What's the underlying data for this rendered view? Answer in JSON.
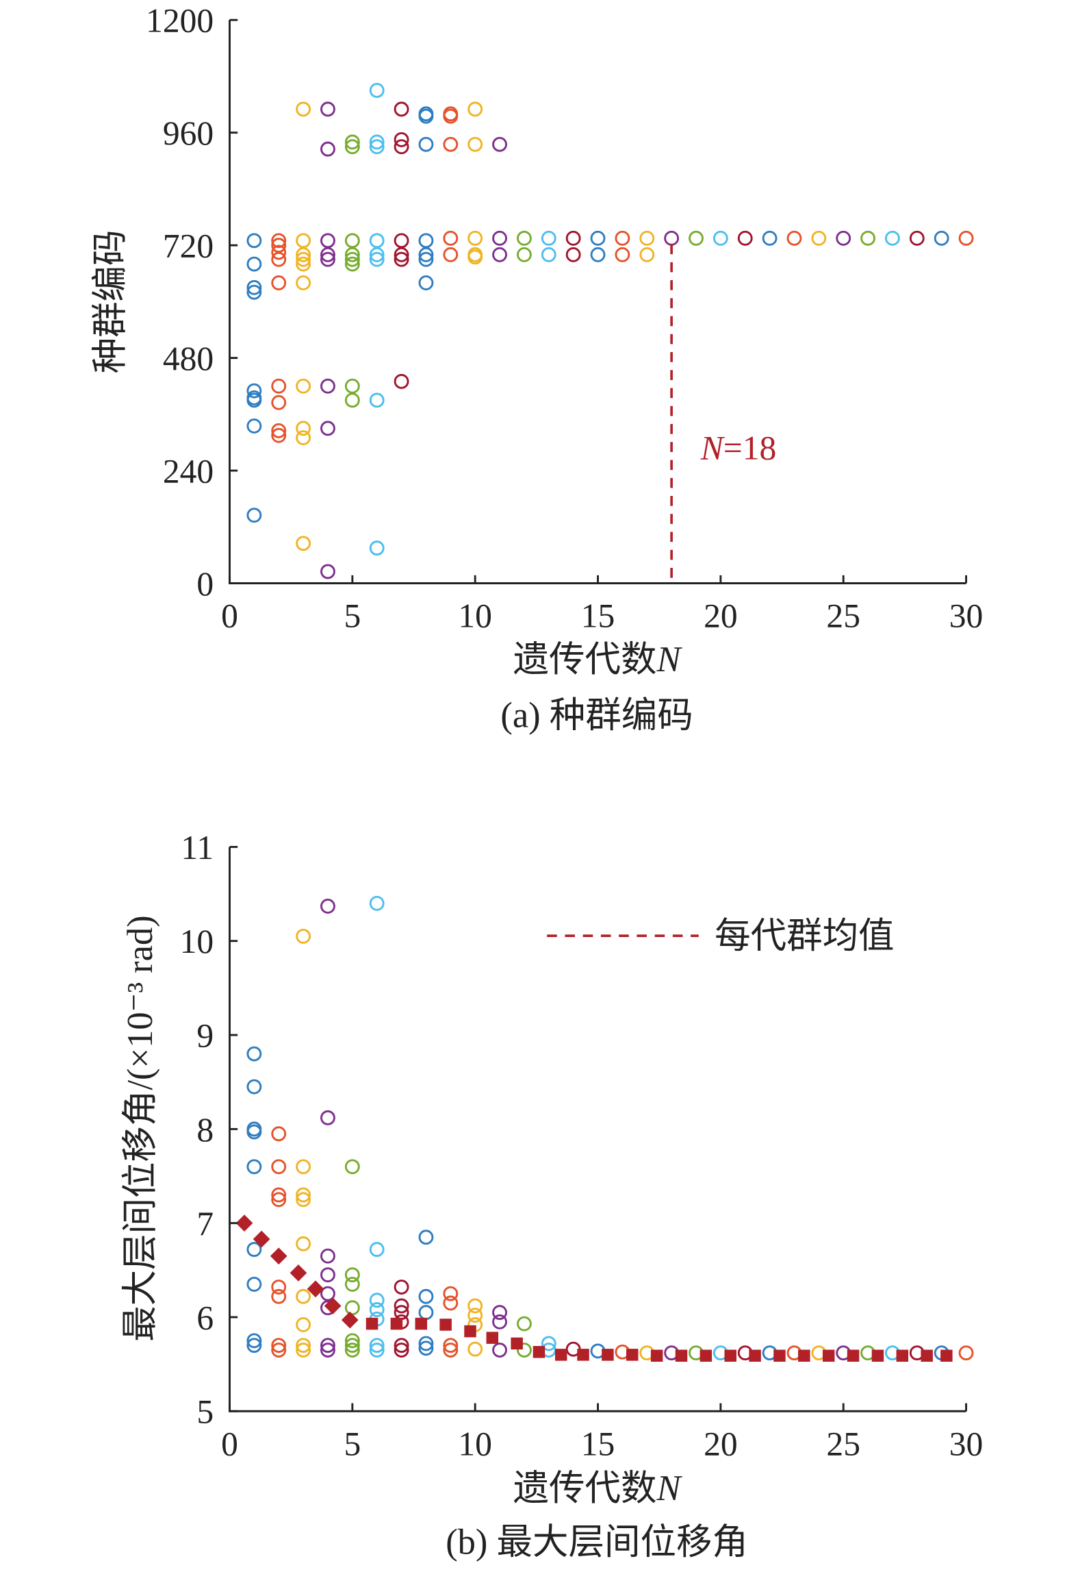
{
  "palette": [
    "#2f7dc1",
    "#e5532b",
    "#f0b425",
    "#7e2f8e",
    "#77ac30",
    "#4dbeee",
    "#a2142f"
  ],
  "mean_color": "#b22028",
  "chart_data": [
    {
      "type": "scatter",
      "caption": "(a) 种群编码",
      "xlabel": "遗传代数",
      "xlabel_var": "N",
      "ylabel": "种群编码",
      "xlim": [
        0,
        30
      ],
      "ylim": [
        0,
        1200
      ],
      "xticks": [
        0,
        5,
        10,
        15,
        20,
        25,
        30
      ],
      "yticks": [
        0,
        240,
        480,
        720,
        960,
        1200
      ],
      "grid": false,
      "annotation": {
        "var": "N",
        "text": "=18",
        "x": 18
      },
      "generations": [
        {
          "x": 1,
          "y": [
            730,
            680,
            630,
            620,
            410,
            395,
            390,
            335,
            145
          ]
        },
        {
          "x": 2,
          "y": [
            730,
            720,
            705,
            690,
            640,
            420,
            385,
            325,
            315
          ]
        },
        {
          "x": 3,
          "y": [
            1010,
            730,
            700,
            690,
            680,
            640,
            420,
            330,
            310,
            85
          ]
        },
        {
          "x": 4,
          "y": [
            1010,
            925,
            730,
            700,
            690,
            420,
            330,
            25
          ]
        },
        {
          "x": 5,
          "y": [
            940,
            930,
            730,
            700,
            690,
            680,
            420,
            390
          ]
        },
        {
          "x": 6,
          "y": [
            1050,
            940,
            930,
            730,
            700,
            690,
            390,
            75
          ]
        },
        {
          "x": 7,
          "y": [
            1010,
            945,
            930,
            730,
            700,
            690,
            430
          ]
        },
        {
          "x": 8,
          "y": [
            1000,
            995,
            935,
            730,
            700,
            690,
            640
          ]
        },
        {
          "x": 9,
          "y": [
            1000,
            995,
            935,
            735,
            700
          ]
        },
        {
          "x": 10,
          "y": [
            1010,
            935,
            735,
            700,
            695
          ]
        },
        {
          "x": 11,
          "y": [
            935,
            735,
            700
          ]
        },
        {
          "x": 12,
          "y": [
            735,
            700
          ]
        },
        {
          "x": 13,
          "y": [
            735,
            700
          ]
        },
        {
          "x": 14,
          "y": [
            735,
            700
          ]
        },
        {
          "x": 15,
          "y": [
            735,
            700
          ]
        },
        {
          "x": 16,
          "y": [
            735,
            700
          ]
        },
        {
          "x": 17,
          "y": [
            735,
            700
          ]
        },
        {
          "x": 18,
          "y": [
            735
          ]
        },
        {
          "x": 19,
          "y": [
            735
          ]
        },
        {
          "x": 20,
          "y": [
            735
          ]
        },
        {
          "x": 21,
          "y": [
            735
          ]
        },
        {
          "x": 22,
          "y": [
            735
          ]
        },
        {
          "x": 23,
          "y": [
            735
          ]
        },
        {
          "x": 24,
          "y": [
            735
          ]
        },
        {
          "x": 25,
          "y": [
            735
          ]
        },
        {
          "x": 26,
          "y": [
            735
          ]
        },
        {
          "x": 27,
          "y": [
            735
          ]
        },
        {
          "x": 28,
          "y": [
            735
          ]
        },
        {
          "x": 29,
          "y": [
            735
          ]
        },
        {
          "x": 30,
          "y": [
            735
          ]
        }
      ]
    },
    {
      "type": "scatter",
      "caption": "(b) 最大层间位移角",
      "xlabel": "遗传代数",
      "xlabel_var": "N",
      "ylabel": "最大层间位移角/(×10⁻³ rad)",
      "xlim": [
        0,
        30
      ],
      "ylim": [
        5,
        11
      ],
      "xticks": [
        0,
        5,
        10,
        15,
        20,
        25,
        30
      ],
      "yticks": [
        5,
        6,
        7,
        8,
        9,
        10,
        11
      ],
      "grid": false,
      "legend": {
        "label": "每代群均值",
        "position": "top-right"
      },
      "generations": [
        {
          "x": 1,
          "y": [
            8.8,
            8.45,
            8.0,
            7.97,
            7.6,
            6.72,
            6.35,
            5.75,
            5.7
          ]
        },
        {
          "x": 2,
          "y": [
            7.95,
            7.6,
            7.3,
            7.25,
            6.32,
            6.22,
            5.7,
            5.65
          ]
        },
        {
          "x": 3,
          "y": [
            10.05,
            7.6,
            7.3,
            7.25,
            6.78,
            6.22,
            5.92,
            5.7,
            5.65
          ]
        },
        {
          "x": 4,
          "y": [
            10.37,
            8.12,
            6.65,
            6.45,
            6.25,
            6.1,
            5.7,
            5.65
          ]
        },
        {
          "x": 5,
          "y": [
            7.6,
            6.45,
            6.35,
            6.1,
            5.75,
            5.7,
            5.65
          ]
        },
        {
          "x": 6,
          "y": [
            10.4,
            6.72,
            6.18,
            6.08,
            5.98,
            5.7,
            5.65
          ]
        },
        {
          "x": 7,
          "y": [
            6.32,
            6.12,
            6.05,
            5.95,
            5.7,
            5.65
          ]
        },
        {
          "x": 8,
          "y": [
            6.85,
            6.22,
            6.05,
            5.72,
            5.67
          ]
        },
        {
          "x": 9,
          "y": [
            6.25,
            6.15,
            5.7,
            5.65
          ]
        },
        {
          "x": 10,
          "y": [
            6.12,
            6.02,
            5.92,
            5.66
          ]
        },
        {
          "x": 11,
          "y": [
            6.05,
            5.95,
            5.65
          ]
        },
        {
          "x": 12,
          "y": [
            5.93,
            5.65
          ]
        },
        {
          "x": 13,
          "y": [
            5.72,
            5.65
          ]
        },
        {
          "x": 14,
          "y": [
            5.66
          ]
        },
        {
          "x": 15,
          "y": [
            5.64
          ]
        },
        {
          "x": 16,
          "y": [
            5.63
          ]
        },
        {
          "x": 17,
          "y": [
            5.62
          ]
        },
        {
          "x": 18,
          "y": [
            5.62
          ]
        },
        {
          "x": 19,
          "y": [
            5.62
          ]
        },
        {
          "x": 20,
          "y": [
            5.62
          ]
        },
        {
          "x": 21,
          "y": [
            5.62
          ]
        },
        {
          "x": 22,
          "y": [
            5.62
          ]
        },
        {
          "x": 23,
          "y": [
            5.62
          ]
        },
        {
          "x": 24,
          "y": [
            5.62
          ]
        },
        {
          "x": 25,
          "y": [
            5.62
          ]
        },
        {
          "x": 26,
          "y": [
            5.62
          ]
        },
        {
          "x": 27,
          "y": [
            5.62
          ]
        },
        {
          "x": 28,
          "y": [
            5.62
          ]
        },
        {
          "x": 29,
          "y": [
            5.62
          ]
        },
        {
          "x": 30,
          "y": [
            5.62
          ]
        }
      ],
      "mean_series": {
        "name": "每代群均值",
        "diamonds": [
          [
            0.6,
            7.0
          ],
          [
            1.3,
            6.83
          ],
          [
            2.0,
            6.65
          ],
          [
            2.8,
            6.47
          ],
          [
            3.5,
            6.3
          ],
          [
            4.2,
            6.12
          ],
          [
            4.9,
            5.97
          ]
        ],
        "squares": [
          [
            5.8,
            5.93
          ],
          [
            6.8,
            5.93
          ],
          [
            7.8,
            5.93
          ],
          [
            8.8,
            5.92
          ],
          [
            9.8,
            5.85
          ],
          [
            10.7,
            5.78
          ],
          [
            11.7,
            5.72
          ],
          [
            12.6,
            5.63
          ],
          [
            13.5,
            5.6
          ],
          [
            14.4,
            5.6
          ],
          [
            15.4,
            5.6
          ],
          [
            16.4,
            5.6
          ],
          [
            17.4,
            5.59
          ],
          [
            18.4,
            5.59
          ],
          [
            19.4,
            5.59
          ],
          [
            20.4,
            5.59
          ],
          [
            21.4,
            5.59
          ],
          [
            22.4,
            5.59
          ],
          [
            23.4,
            5.59
          ],
          [
            24.4,
            5.59
          ],
          [
            25.4,
            5.59
          ],
          [
            26.4,
            5.59
          ],
          [
            27.4,
            5.59
          ],
          [
            28.4,
            5.59
          ],
          [
            29.2,
            5.59
          ]
        ]
      }
    }
  ]
}
